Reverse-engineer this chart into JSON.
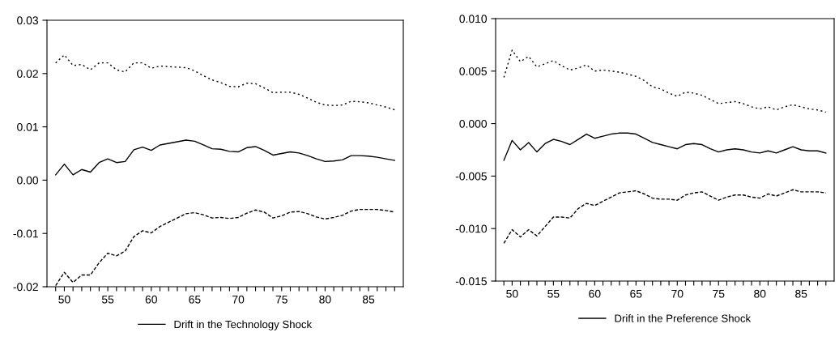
{
  "chart_data": [
    {
      "type": "line",
      "x": [
        49,
        50,
        51,
        52,
        53,
        54,
        55,
        56,
        57,
        58,
        59,
        60,
        61,
        62,
        63,
        64,
        65,
        66,
        67,
        68,
        69,
        70,
        71,
        72,
        73,
        74,
        75,
        76,
        77,
        78,
        79,
        80,
        81,
        82,
        83,
        84,
        85,
        86,
        87,
        88
      ],
      "series": [
        {
          "name": "Drift in the Technology Shock",
          "color": "#000000",
          "line_style": "solid",
          "values": [
            0.001,
            0.003,
            0.001,
            0.002,
            0.0015,
            0.0033,
            0.004,
            0.0033,
            0.0035,
            0.0057,
            0.0062,
            0.0056,
            0.0066,
            0.0069,
            0.0072,
            0.0075,
            0.0073,
            0.0066,
            0.0059,
            0.0058,
            0.0054,
            0.0053,
            0.0061,
            0.0063,
            0.0056,
            0.0047,
            0.005,
            0.0053,
            0.0051,
            0.0046,
            0.004,
            0.0035,
            0.0036,
            0.0038,
            0.0046,
            0.0046,
            0.0045,
            0.0043,
            0.004,
            0.0037
          ]
        },
        {
          "color": "#000000",
          "line_style": "dotted",
          "values": [
            0.022,
            0.0235,
            0.0215,
            0.0217,
            0.0207,
            0.022,
            0.022,
            0.0207,
            0.0203,
            0.022,
            0.022,
            0.021,
            0.0214,
            0.0213,
            0.0212,
            0.0211,
            0.0205,
            0.0196,
            0.0188,
            0.0183,
            0.0176,
            0.0175,
            0.0182,
            0.0181,
            0.0173,
            0.0164,
            0.0165,
            0.0165,
            0.0161,
            0.0154,
            0.0146,
            0.0141,
            0.014,
            0.0141,
            0.0148,
            0.0147,
            0.0145,
            0.0141,
            0.0137,
            0.0132
          ]
        },
        {
          "color": "#000000",
          "line_style": "dashed",
          "values": [
            -0.0198,
            -0.0173,
            -0.0192,
            -0.0178,
            -0.0178,
            -0.0155,
            -0.0137,
            -0.0142,
            -0.0133,
            -0.0106,
            -0.0095,
            -0.0099,
            -0.0087,
            -0.0079,
            -0.0071,
            -0.0063,
            -0.0061,
            -0.0065,
            -0.0071,
            -0.007,
            -0.0072,
            -0.007,
            -0.0062,
            -0.0056,
            -0.006,
            -0.0071,
            -0.0067,
            -0.006,
            -0.0059,
            -0.0063,
            -0.0069,
            -0.0073,
            -0.007,
            -0.0066,
            -0.0058,
            -0.0055,
            -0.0055,
            -0.0055,
            -0.0057,
            -0.006
          ]
        }
      ],
      "xlim": [
        48,
        89
      ],
      "xticks": [
        {
          "value": 49,
          "label": null
        },
        50,
        {
          "value": 51,
          "label": null
        },
        {
          "value": 52,
          "label": null
        },
        {
          "value": 53,
          "label": null
        },
        {
          "value": 54,
          "label": null
        },
        55,
        {
          "value": 56,
          "label": null
        },
        {
          "value": 57,
          "label": null
        },
        {
          "value": 58,
          "label": null
        },
        {
          "value": 59,
          "label": null
        },
        60,
        {
          "value": 61,
          "label": null
        },
        {
          "value": 62,
          "label": null
        },
        {
          "value": 63,
          "label": null
        },
        {
          "value": 64,
          "label": null
        },
        65,
        {
          "value": 66,
          "label": null
        },
        {
          "value": 67,
          "label": null
        },
        {
          "value": 68,
          "label": null
        },
        {
          "value": 69,
          "label": null
        },
        70,
        {
          "value": 71,
          "label": null
        },
        {
          "value": 72,
          "label": null
        },
        {
          "value": 73,
          "label": null
        },
        {
          "value": 74,
          "label": null
        },
        75,
        {
          "value": 76,
          "label": null
        },
        {
          "value": 77,
          "label": null
        },
        {
          "value": 78,
          "label": null
        },
        {
          "value": 79,
          "label": null
        },
        80,
        {
          "value": 81,
          "label": null
        },
        {
          "value": 82,
          "label": null
        },
        {
          "value": 83,
          "label": null
        },
        {
          "value": 84,
          "label": null
        },
        85,
        {
          "value": 86,
          "label": null
        },
        {
          "value": 87,
          "label": null
        },
        {
          "value": 88,
          "label": null
        }
      ],
      "ylim": [
        -0.02,
        0.03
      ],
      "yticks": [
        {
          "value": -0.02,
          "label": "-0.02"
        },
        {
          "value": -0.01,
          "label": "-0.01"
        },
        {
          "value": 0,
          "label": "0.00"
        },
        {
          "value": 0.01,
          "label": "0.01"
        },
        {
          "value": 0.02,
          "label": "0.02"
        },
        {
          "value": 0.03,
          "label": "0.03"
        }
      ],
      "grid": false,
      "legend": "bottom"
    },
    {
      "type": "line",
      "x": [
        49,
        50,
        51,
        52,
        53,
        54,
        55,
        56,
        57,
        58,
        59,
        60,
        61,
        62,
        63,
        64,
        65,
        66,
        67,
        68,
        69,
        70,
        71,
        72,
        73,
        74,
        75,
        76,
        77,
        78,
        79,
        80,
        81,
        82,
        83,
        84,
        85,
        86,
        87,
        88
      ],
      "series": [
        {
          "name": "Drift in the Preference Shock",
          "color": "#000000",
          "line_style": "solid",
          "values": [
            -0.0035,
            -0.0016,
            -0.0025,
            -0.0018,
            -0.0027,
            -0.0019,
            -0.0015,
            -0.0017,
            -0.002,
            -0.0015,
            -0.001,
            -0.0014,
            -0.0012,
            -0.001,
            -0.0009,
            -0.0009,
            -0.001,
            -0.0014,
            -0.0018,
            -0.002,
            -0.0022,
            -0.0024,
            -0.002,
            -0.0019,
            -0.002,
            -0.0024,
            -0.0027,
            -0.0025,
            -0.0024,
            -0.0025,
            -0.0027,
            -0.0028,
            -0.0026,
            -0.0028,
            -0.0025,
            -0.0022,
            -0.0025,
            -0.0026,
            -0.0026,
            -0.0028
          ]
        },
        {
          "color": "#000000",
          "line_style": "dotted",
          "values": [
            0.0044,
            0.007,
            0.0059,
            0.0064,
            0.0054,
            0.0057,
            0.006,
            0.0055,
            0.0051,
            0.0053,
            0.0056,
            0.005,
            0.0051,
            0.005,
            0.0049,
            0.0047,
            0.0045,
            0.0041,
            0.0035,
            0.0033,
            0.0029,
            0.0026,
            0.003,
            0.0029,
            0.0027,
            0.0023,
            0.0019,
            0.002,
            0.0021,
            0.0019,
            0.0016,
            0.0014,
            0.0016,
            0.0013,
            0.0016,
            0.0018,
            0.0016,
            0.0014,
            0.0013,
            0.0011
          ]
        },
        {
          "color": "#000000",
          "line_style": "dashed",
          "values": [
            -0.0114,
            -0.0101,
            -0.0108,
            -0.0101,
            -0.0107,
            -0.0098,
            -0.0089,
            -0.0089,
            -0.009,
            -0.0081,
            -0.0076,
            -0.0078,
            -0.0074,
            -0.007,
            -0.0066,
            -0.0065,
            -0.0064,
            -0.0067,
            -0.0071,
            -0.0072,
            -0.0072,
            -0.0073,
            -0.0068,
            -0.0066,
            -0.0065,
            -0.0069,
            -0.0073,
            -0.007,
            -0.0068,
            -0.0068,
            -0.007,
            -0.0071,
            -0.0067,
            -0.0069,
            -0.0066,
            -0.0063,
            -0.0065,
            -0.0065,
            -0.0065,
            -0.0066
          ]
        }
      ],
      "xlim": [
        48,
        89
      ],
      "xticks": [
        {
          "value": 49,
          "label": null
        },
        50,
        {
          "value": 51,
          "label": null
        },
        {
          "value": 52,
          "label": null
        },
        {
          "value": 53,
          "label": null
        },
        {
          "value": 54,
          "label": null
        },
        55,
        {
          "value": 56,
          "label": null
        },
        {
          "value": 57,
          "label": null
        },
        {
          "value": 58,
          "label": null
        },
        {
          "value": 59,
          "label": null
        },
        60,
        {
          "value": 61,
          "label": null
        },
        {
          "value": 62,
          "label": null
        },
        {
          "value": 63,
          "label": null
        },
        {
          "value": 64,
          "label": null
        },
        65,
        {
          "value": 66,
          "label": null
        },
        {
          "value": 67,
          "label": null
        },
        {
          "value": 68,
          "label": null
        },
        {
          "value": 69,
          "label": null
        },
        70,
        {
          "value": 71,
          "label": null
        },
        {
          "value": 72,
          "label": null
        },
        {
          "value": 73,
          "label": null
        },
        {
          "value": 74,
          "label": null
        },
        75,
        {
          "value": 76,
          "label": null
        },
        {
          "value": 77,
          "label": null
        },
        {
          "value": 78,
          "label": null
        },
        {
          "value": 79,
          "label": null
        },
        80,
        {
          "value": 81,
          "label": null
        },
        {
          "value": 82,
          "label": null
        },
        {
          "value": 83,
          "label": null
        },
        {
          "value": 84,
          "label": null
        },
        85,
        {
          "value": 86,
          "label": null
        },
        {
          "value": 87,
          "label": null
        },
        {
          "value": 88,
          "label": null
        }
      ],
      "ylim": [
        -0.015,
        0.01
      ],
      "yticks": [
        {
          "value": -0.015,
          "label": "-0.015"
        },
        {
          "value": -0.01,
          "label": "-0.010"
        },
        {
          "value": -0.005,
          "label": "-0.005"
        },
        {
          "value": 0,
          "label": "0.000"
        },
        {
          "value": 0.005,
          "label": "0.005"
        },
        {
          "value": 0.01,
          "label": "0.010"
        }
      ],
      "grid": false,
      "legend": "bottom"
    }
  ]
}
